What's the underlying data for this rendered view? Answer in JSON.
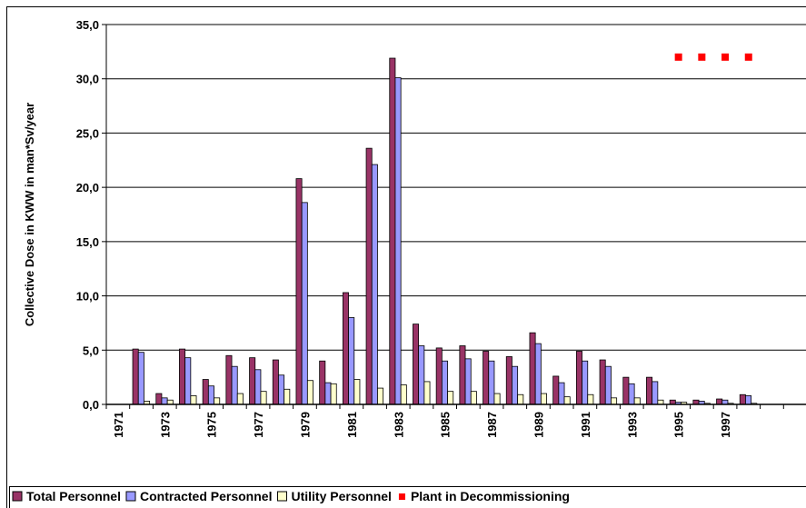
{
  "chart_data": {
    "type": "bar",
    "y_label": "Collective Dose in KWW in man*Sv/year",
    "categories": [
      "1971",
      null,
      "1973",
      null,
      "1975",
      null,
      "1977",
      null,
      "1979",
      null,
      "1981",
      null,
      "1983",
      null,
      "1985",
      null,
      "1987",
      null,
      "1989",
      null,
      "1991",
      null,
      "1993",
      null,
      "1995",
      null,
      "1997",
      null,
      null,
      null
    ],
    "series": [
      {
        "name": "Total Personnel",
        "color": "#993366",
        "values": [
          null,
          5.1,
          1.0,
          5.1,
          2.3,
          4.5,
          4.3,
          4.1,
          20.8,
          4.0,
          10.3,
          23.6,
          31.9,
          7.4,
          5.2,
          5.4,
          4.9,
          4.4,
          6.6,
          2.6,
          4.9,
          4.1,
          2.5,
          2.5,
          0.4,
          0.4,
          0.5,
          0.9,
          null,
          null
        ]
      },
      {
        "name": "Contracted Personnel",
        "color": "#9999ff",
        "values": [
          null,
          4.8,
          0.6,
          4.3,
          1.7,
          3.5,
          3.2,
          2.7,
          18.6,
          2.0,
          8.0,
          22.1,
          30.1,
          5.4,
          4.0,
          4.2,
          4.0,
          3.5,
          5.6,
          2.0,
          4.0,
          3.5,
          1.9,
          2.1,
          0.2,
          0.3,
          0.4,
          0.8,
          null,
          null
        ]
      },
      {
        "name": "Utility Personnel",
        "color": "#ffffcc",
        "values": [
          null,
          0.3,
          0.4,
          0.8,
          0.6,
          1.0,
          1.2,
          1.4,
          2.2,
          1.9,
          2.3,
          1.5,
          1.8,
          2.1,
          1.2,
          1.2,
          1.0,
          0.9,
          1.0,
          0.7,
          0.9,
          0.6,
          0.6,
          0.4,
          0.2,
          0.1,
          0.1,
          0.1,
          null,
          null
        ]
      },
      {
        "name": "Plant in Decommissioning",
        "color": "#ff0000",
        "type": "scatter",
        "values": [
          null,
          null,
          null,
          null,
          null,
          null,
          null,
          null,
          null,
          null,
          null,
          null,
          null,
          null,
          null,
          null,
          null,
          null,
          null,
          null,
          null,
          null,
          null,
          null,
          32,
          32,
          32,
          32,
          null,
          null
        ]
      }
    ],
    "ylim": [
      0,
      35
    ],
    "yticks": [
      {
        "value": 0,
        "label": "0,0"
      },
      {
        "value": 5,
        "label": "5,0"
      },
      {
        "value": 10,
        "label": "10,0"
      },
      {
        "value": 15,
        "label": "15,0"
      },
      {
        "value": 20,
        "label": "20,0"
      },
      {
        "value": 25,
        "label": "25,0"
      },
      {
        "value": 30,
        "label": "30,0"
      },
      {
        "value": 35,
        "label": "35,0"
      }
    ],
    "grid": true
  }
}
